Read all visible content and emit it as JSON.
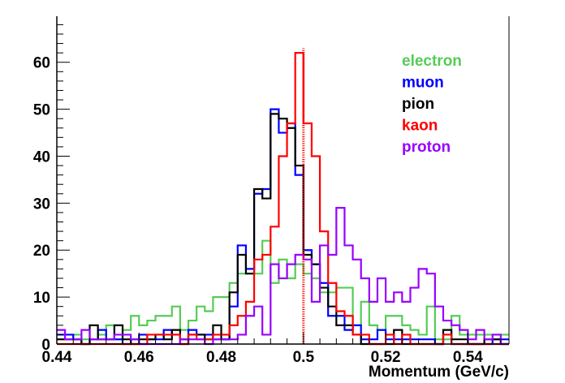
{
  "chart_data": {
    "type": "histogram-step",
    "title": "",
    "xlabel": "Momentum (GeV/c)",
    "ylabel": "",
    "xlim": [
      0.44,
      0.55
    ],
    "ylim": [
      0,
      69.8
    ],
    "bin_width": 0.002,
    "x_ticks": [
      "0.44",
      "0.46",
      "0.48",
      "0.5",
      "0.52",
      "0.54"
    ],
    "x_tick_values": [
      0.44,
      0.46,
      0.48,
      0.5,
      0.52,
      0.54
    ],
    "y_ticks": [
      "0",
      "10",
      "20",
      "30",
      "40",
      "50",
      "60"
    ],
    "y_tick_values": [
      0,
      10,
      20,
      30,
      40,
      50,
      60
    ],
    "legend_placement": "top-right",
    "reference_line": {
      "x": 0.5,
      "ymax": 63,
      "color": "#ff0000",
      "style": "dashed"
    },
    "series": [
      {
        "name": "electron",
        "color": "#55cc55",
        "values": [
          1,
          1,
          2,
          1,
          1,
          2,
          4,
          1,
          3,
          6,
          4,
          5,
          6,
          6,
          8,
          3,
          5,
          8,
          7,
          10,
          10,
          13,
          15,
          15,
          15,
          22,
          13,
          18,
          14,
          17,
          15,
          14,
          11,
          11,
          12,
          12,
          4,
          9,
          4,
          3,
          6,
          6,
          4,
          3,
          2,
          8,
          1,
          1,
          6,
          2,
          2,
          2,
          2,
          2,
          2
        ]
      },
      {
        "name": "muon",
        "color": "#0000ff",
        "values": [
          2,
          2,
          1,
          0,
          1,
          3,
          1,
          1,
          0,
          1,
          2,
          1,
          1,
          3,
          2,
          0,
          3,
          2,
          2,
          1,
          1,
          8,
          21,
          16,
          32,
          33,
          50,
          45,
          47,
          36,
          20,
          17,
          13,
          6,
          6,
          3,
          4,
          1,
          1,
          3,
          1,
          1,
          1,
          1,
          1,
          1,
          0,
          2,
          0,
          0,
          0,
          0,
          0,
          1,
          1
        ]
      },
      {
        "name": "pion",
        "color": "#000000",
        "values": [
          1,
          1,
          1,
          0,
          4,
          1,
          1,
          4,
          1,
          0,
          1,
          1,
          2,
          1,
          3,
          1,
          2,
          2,
          1,
          4,
          1,
          11,
          19,
          15,
          33,
          31,
          49,
          48,
          46,
          38,
          19,
          17,
          12,
          8,
          4,
          4,
          2,
          0,
          0,
          0,
          0,
          3,
          0,
          0,
          0,
          0,
          0,
          3,
          1,
          1,
          0,
          0,
          1,
          1,
          0
        ]
      },
      {
        "name": "kaon",
        "color": "#ff0000",
        "values": [
          0,
          0,
          0,
          0,
          0,
          0,
          0,
          0,
          0,
          0,
          0,
          2,
          2,
          2,
          2,
          0,
          2,
          1,
          1,
          2,
          2,
          4,
          6,
          9,
          18,
          19,
          25,
          40,
          47,
          62,
          47,
          40,
          24,
          13,
          7,
          6,
          2,
          2,
          0,
          0,
          2,
          0,
          2,
          0,
          0,
          0,
          0,
          2,
          0,
          0,
          0,
          0,
          0,
          0,
          0
        ]
      },
      {
        "name": "proton",
        "color": "#9900ff",
        "values": [
          3,
          1,
          1,
          3,
          1,
          1,
          1,
          2,
          2,
          1,
          0,
          0,
          0,
          0,
          0,
          1,
          1,
          1,
          0,
          1,
          1,
          1,
          2,
          6,
          8,
          2,
          17,
          14,
          17,
          19,
          18,
          9,
          21,
          19,
          29,
          21,
          18,
          14,
          9,
          14,
          9,
          11,
          9,
          12,
          16,
          15,
          8,
          5,
          4,
          3,
          1,
          3,
          1,
          2,
          0
        ]
      }
    ]
  }
}
